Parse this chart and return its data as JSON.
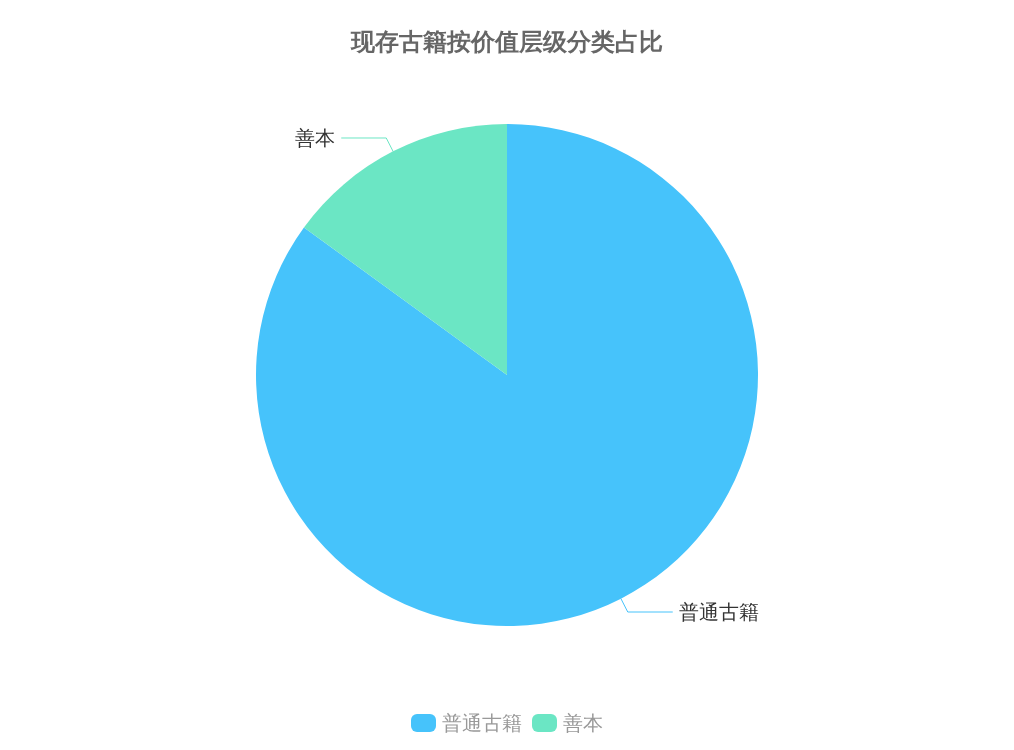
{
  "chart_data": {
    "type": "pie",
    "title": "现存古籍按价值层级分类占比",
    "categories": [
      "普通古籍",
      "善本"
    ],
    "values": [
      85,
      15
    ],
    "colors": [
      "#46c3fb",
      "#6be6c4"
    ],
    "legend": "bottom"
  }
}
